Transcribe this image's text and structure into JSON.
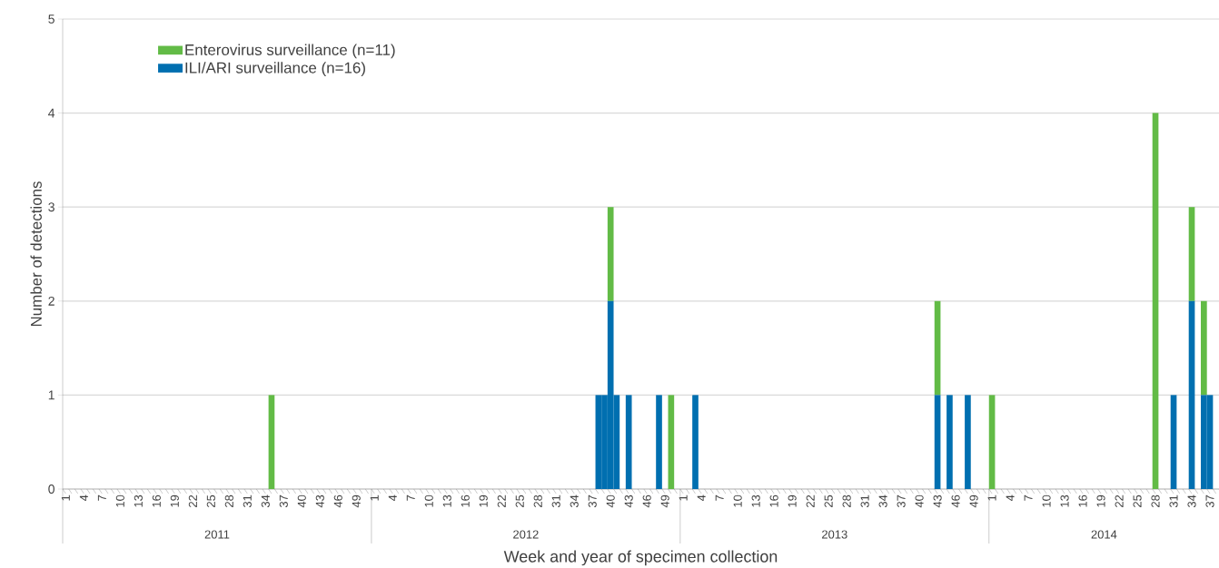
{
  "chart_data": {
    "type": "bar",
    "stacked": true,
    "xlabel": "Week and year of specimen collection",
    "ylabel": "Number of detections",
    "annotations": [
      "2011",
      "2012",
      "2013",
      "2014"
    ],
    "categories": [
      "1",
      null,
      null,
      "4",
      null,
      null,
      "7",
      null,
      null,
      "10",
      null,
      null,
      "13",
      null,
      null,
      "16",
      null,
      null,
      "19",
      null,
      null,
      "22",
      null,
      null,
      "25",
      null,
      null,
      "28",
      null,
      null,
      "31",
      null,
      null,
      "34",
      null,
      null,
      "37",
      null,
      null,
      "40",
      null,
      null,
      "43",
      null,
      null,
      "46",
      null,
      null,
      "49",
      null,
      null,
      "1",
      null,
      null,
      "4",
      null,
      null,
      "7",
      null,
      null,
      "10",
      null,
      null,
      "13",
      null,
      null,
      "16",
      null,
      null,
      "19",
      null,
      null,
      "22",
      null,
      null,
      "25",
      null,
      null,
      "28",
      null,
      null,
      "31",
      null,
      null,
      "34",
      null,
      null,
      "37",
      null,
      null,
      "40",
      null,
      null,
      "43",
      null,
      null,
      "46",
      null,
      null,
      "49",
      null,
      null,
      "1",
      null,
      null,
      "4",
      null,
      null,
      "7",
      null,
      null,
      "10",
      null,
      null,
      "13",
      null,
      null,
      "16",
      null,
      null,
      "19",
      null,
      null,
      "22",
      null,
      null,
      "25",
      null,
      null,
      "28",
      null,
      null,
      "31",
      null,
      null,
      "34",
      null,
      null,
      "37",
      null,
      null,
      "40",
      null,
      null,
      "43",
      null,
      null,
      "46",
      null,
      null,
      "49",
      null,
      null,
      "1",
      null,
      null,
      "4",
      null,
      null,
      "7",
      null,
      null,
      "10",
      null,
      null,
      "13",
      null,
      null,
      "16",
      null,
      null,
      "19",
      null,
      null,
      "22",
      null,
      null,
      "25",
      null,
      null,
      "28",
      null,
      null,
      "31",
      null,
      null,
      "34",
      null,
      null,
      "37",
      null
    ],
    "series": [
      {
        "name": "ILI/ARI surveillance (n=16)",
        "color": "#006fb0",
        "values": [
          0,
          0,
          0,
          0,
          0,
          0,
          0,
          0,
          0,
          0,
          0,
          0,
          0,
          0,
          0,
          0,
          0,
          0,
          0,
          0,
          0,
          0,
          0,
          0,
          0,
          0,
          0,
          0,
          0,
          0,
          0,
          0,
          0,
          0,
          0,
          0,
          0,
          0,
          0,
          0,
          0,
          0,
          0,
          0,
          0,
          0,
          0,
          0,
          0,
          0,
          0,
          0,
          0,
          0,
          0,
          0,
          0,
          0,
          0,
          0,
          0,
          0,
          0,
          0,
          0,
          0,
          0,
          0,
          0,
          0,
          0,
          0,
          0,
          0,
          0,
          0,
          0,
          0,
          0,
          0,
          0,
          0,
          0,
          0,
          0,
          0,
          0,
          0,
          1,
          1,
          2,
          1,
          0,
          1,
          0,
          0,
          0,
          0,
          1,
          0,
          0,
          0,
          0,
          0,
          1,
          0,
          0,
          0,
          0,
          0,
          0,
          0,
          0,
          0,
          0,
          0,
          0,
          0,
          0,
          0,
          0,
          0,
          0,
          0,
          0,
          0,
          0,
          0,
          0,
          0,
          0,
          0,
          0,
          0,
          0,
          0,
          0,
          0,
          0,
          0,
          0,
          0,
          0,
          0,
          1,
          0,
          1,
          0,
          0,
          1,
          0,
          0,
          0,
          0,
          0,
          0,
          0,
          0,
          0,
          0,
          0,
          0,
          0,
          0,
          0,
          0,
          0,
          0,
          0,
          0,
          0,
          0,
          0,
          0,
          0,
          0,
          0,
          0,
          0,
          0,
          0,
          0,
          0,
          1,
          0,
          0,
          2,
          0,
          1,
          1,
          0
        ]
      },
      {
        "name": "Enterovirus surveillance (n=11)",
        "color": "#62bb46",
        "values": [
          0,
          0,
          0,
          0,
          0,
          0,
          0,
          0,
          0,
          0,
          0,
          0,
          0,
          0,
          0,
          0,
          0,
          0,
          0,
          0,
          0,
          0,
          0,
          0,
          0,
          0,
          0,
          0,
          0,
          0,
          0,
          0,
          0,
          0,
          1,
          0,
          0,
          0,
          0,
          0,
          0,
          0,
          0,
          0,
          0,
          0,
          0,
          0,
          0,
          0,
          0,
          0,
          0,
          0,
          0,
          0,
          0,
          0,
          0,
          0,
          0,
          0,
          0,
          0,
          0,
          0,
          0,
          0,
          0,
          0,
          0,
          0,
          0,
          0,
          0,
          0,
          0,
          0,
          0,
          0,
          0,
          0,
          0,
          0,
          0,
          0,
          0,
          0,
          0,
          0,
          1,
          0,
          0,
          0,
          0,
          0,
          0,
          0,
          0,
          0,
          1,
          0,
          0,
          0,
          0,
          0,
          0,
          0,
          0,
          0,
          0,
          0,
          0,
          0,
          0,
          0,
          0,
          0,
          0,
          0,
          0,
          0,
          0,
          0,
          0,
          0,
          0,
          0,
          0,
          0,
          0,
          0,
          0,
          0,
          0,
          0,
          0,
          0,
          0,
          0,
          0,
          0,
          0,
          0,
          1,
          0,
          0,
          0,
          0,
          0,
          0,
          0,
          0,
          1,
          0,
          0,
          0,
          0,
          0,
          0,
          0,
          0,
          0,
          0,
          0,
          0,
          0,
          0,
          0,
          0,
          0,
          0,
          0,
          0,
          0,
          0,
          0,
          0,
          0,
          0,
          4,
          0,
          0,
          0,
          0,
          0,
          1,
          0,
          1,
          0,
          0
        ]
      }
    ],
    "ylim": [
      0,
      5
    ],
    "yticks": [
      0,
      1,
      2,
      3,
      4,
      5
    ],
    "grid": "y",
    "legend": "top left"
  }
}
